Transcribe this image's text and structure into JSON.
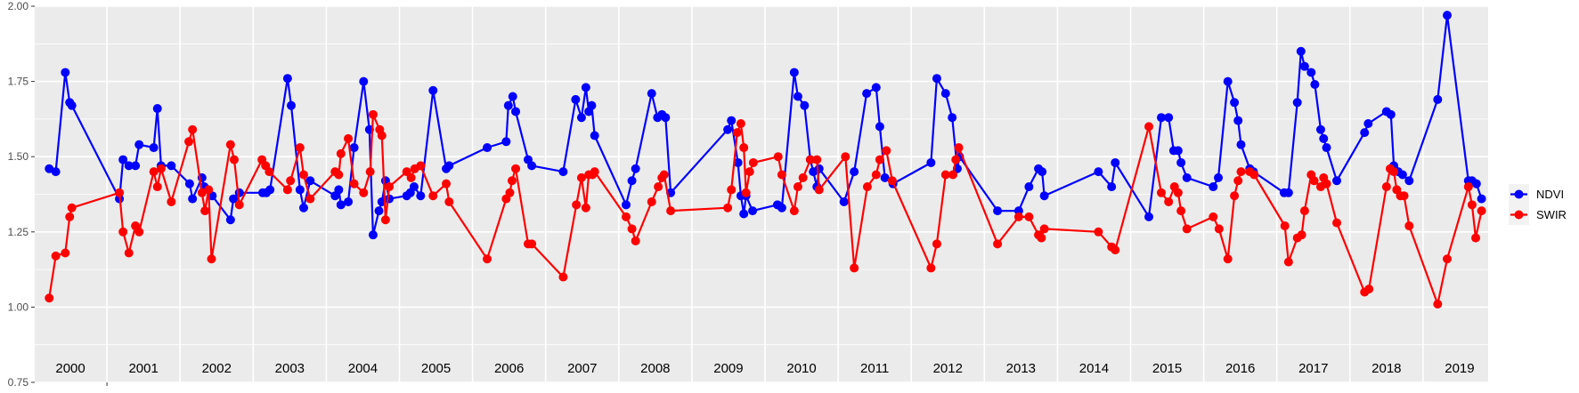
{
  "chart_data": {
    "type": "line",
    "title": "",
    "xlabel": "",
    "ylabel": "",
    "xlim": [
      2000.0,
      2019.89
    ],
    "ylim": [
      0.75,
      2.0
    ],
    "y_ticks": [
      "0.75",
      "1.00",
      "1.25",
      "1.50",
      "1.75",
      "2.00"
    ],
    "y_tick_values": [
      0.75,
      1.0,
      1.25,
      1.5,
      1.75,
      2.0
    ],
    "year_labels": [
      "2000",
      "2001",
      "2002",
      "2003",
      "2004",
      "2005",
      "2006",
      "2007",
      "2008",
      "2009",
      "2010",
      "2011",
      "2012",
      "2013",
      "2014",
      "2015",
      "2016",
      "2017",
      "2018",
      "2019"
    ],
    "grid": true,
    "legend_position": "right",
    "series": [
      {
        "name": "NDVI",
        "color": "#0000FF",
        "x": [
          2000.21,
          2000.3,
          2000.43,
          2000.49,
          2000.52,
          2001.17,
          2001.22,
          2001.3,
          2001.39,
          2001.44,
          2001.64,
          2001.69,
          2001.74,
          2001.88,
          2002.13,
          2002.17,
          2002.3,
          2002.33,
          2002.44,
          2002.69,
          2002.73,
          2002.81,
          2003.13,
          2003.18,
          2003.23,
          2003.47,
          2003.52,
          2003.64,
          2003.69,
          2003.78,
          2004.12,
          2004.17,
          2004.2,
          2004.3,
          2004.38,
          2004.51,
          2004.59,
          2004.64,
          2004.72,
          2004.76,
          2004.81,
          2004.86,
          2005.1,
          2005.15,
          2005.2,
          2005.29,
          2005.46,
          2005.64,
          2005.68,
          2006.2,
          2006.46,
          2006.49,
          2006.55,
          2006.59,
          2006.76,
          2006.81,
          2007.24,
          2007.41,
          2007.49,
          2007.55,
          2007.59,
          2007.63,
          2007.67,
          2008.1,
          2008.18,
          2008.23,
          2008.45,
          2008.53,
          2008.59,
          2008.64,
          2008.71,
          2009.49,
          2009.54,
          2009.63,
          2009.67,
          2009.71,
          2009.74,
          2009.83,
          2010.17,
          2010.23,
          2010.4,
          2010.45,
          2010.54,
          2010.62,
          2010.66,
          2010.71,
          2010.74,
          2011.08,
          2011.22,
          2011.39,
          2011.52,
          2011.57,
          2011.64,
          2011.75,
          2012.27,
          2012.35,
          2012.47,
          2012.56,
          2012.63,
          2012.66,
          2013.18,
          2013.47,
          2013.61,
          2013.74,
          2013.79,
          2013.82,
          2014.56,
          2014.74,
          2014.79,
          2015.25,
          2015.42,
          2015.52,
          2015.59,
          2015.65,
          2015.69,
          2015.77,
          2016.13,
          2016.2,
          2016.33,
          2016.42,
          2016.47,
          2016.51,
          2016.63,
          2016.68,
          2017.1,
          2017.16,
          2017.28,
          2017.33,
          2017.38,
          2017.47,
          2017.52,
          2017.6,
          2017.64,
          2017.68,
          2017.82,
          2018.2,
          2018.25,
          2018.5,
          2018.56,
          2018.6,
          2018.66,
          2018.72,
          2018.81,
          2019.2,
          2019.33,
          2019.62,
          2019.67,
          2019.73,
          2019.8
        ],
        "values": [
          1.46,
          1.45,
          1.78,
          1.68,
          1.67,
          1.36,
          1.49,
          1.47,
          1.47,
          1.54,
          1.53,
          1.66,
          1.47,
          1.47,
          1.41,
          1.36,
          1.43,
          1.4,
          1.37,
          1.29,
          1.36,
          1.38,
          1.38,
          1.38,
          1.39,
          1.76,
          1.67,
          1.39,
          1.33,
          1.42,
          1.37,
          1.39,
          1.34,
          1.35,
          1.53,
          1.75,
          1.59,
          1.24,
          1.32,
          1.35,
          1.42,
          1.36,
          1.37,
          1.38,
          1.4,
          1.37,
          1.72,
          1.46,
          1.47,
          1.53,
          1.55,
          1.67,
          1.7,
          1.65,
          1.49,
          1.47,
          1.45,
          1.69,
          1.63,
          1.73,
          1.65,
          1.67,
          1.57,
          1.34,
          1.42,
          1.46,
          1.71,
          1.63,
          1.64,
          1.63,
          1.38,
          1.59,
          1.62,
          1.48,
          1.37,
          1.31,
          1.37,
          1.32,
          1.34,
          1.33,
          1.78,
          1.7,
          1.67,
          1.49,
          1.45,
          1.4,
          1.46,
          1.35,
          1.45,
          1.71,
          1.73,
          1.6,
          1.43,
          1.41,
          1.48,
          1.76,
          1.71,
          1.63,
          1.46,
          1.5,
          1.32,
          1.32,
          1.4,
          1.46,
          1.45,
          1.37,
          1.45,
          1.4,
          1.48,
          1.3,
          1.63,
          1.63,
          1.52,
          1.52,
          1.48,
          1.43,
          1.4,
          1.43,
          1.75,
          1.68,
          1.62,
          1.54,
          1.46,
          1.45,
          1.38,
          1.38,
          1.68,
          1.85,
          1.8,
          1.78,
          1.74,
          1.59,
          1.56,
          1.53,
          1.42,
          1.58,
          1.61,
          1.65,
          1.64,
          1.47,
          1.45,
          1.44,
          1.42,
          1.69,
          1.97,
          1.42,
          1.42,
          1.41,
          1.36
        ]
      },
      {
        "name": "SWIR",
        "color": "#FF0000",
        "x": [
          2000.21,
          2000.3,
          2000.43,
          2000.49,
          2000.52,
          2001.17,
          2001.22,
          2001.3,
          2001.39,
          2001.44,
          2001.64,
          2001.69,
          2001.74,
          2001.88,
          2002.12,
          2002.17,
          2002.3,
          2002.34,
          2002.39,
          2002.43,
          2002.69,
          2002.74,
          2002.81,
          2003.12,
          2003.17,
          2003.22,
          2003.47,
          2003.51,
          2003.64,
          2003.69,
          2003.78,
          2004.12,
          2004.17,
          2004.2,
          2004.3,
          2004.38,
          2004.51,
          2004.6,
          2004.64,
          2004.73,
          2004.76,
          2004.81,
          2004.86,
          2005.1,
          2005.16,
          2005.21,
          2005.29,
          2005.46,
          2005.64,
          2005.68,
          2006.2,
          2006.46,
          2006.51,
          2006.54,
          2006.59,
          2006.76,
          2006.81,
          2007.24,
          2007.42,
          2007.49,
          2007.55,
          2007.59,
          2007.64,
          2007.67,
          2008.1,
          2008.18,
          2008.23,
          2008.45,
          2008.54,
          2008.59,
          2008.62,
          2008.71,
          2009.49,
          2009.54,
          2009.62,
          2009.67,
          2009.71,
          2009.74,
          2009.79,
          2009.84,
          2010.18,
          2010.23,
          2010.4,
          2010.45,
          2010.52,
          2010.62,
          2010.71,
          2010.74,
          2011.1,
          2011.22,
          2011.4,
          2011.52,
          2011.57,
          2011.66,
          2011.74,
          2012.27,
          2012.35,
          2012.47,
          2012.57,
          2012.61,
          2012.65,
          2013.18,
          2013.47,
          2013.61,
          2013.74,
          2013.78,
          2013.82,
          2014.56,
          2014.74,
          2014.79,
          2015.25,
          2015.42,
          2015.52,
          2015.6,
          2015.65,
          2015.69,
          2015.77,
          2016.13,
          2016.21,
          2016.33,
          2016.42,
          2016.47,
          2016.51,
          2016.63,
          2016.69,
          2017.11,
          2017.16,
          2017.28,
          2017.34,
          2017.38,
          2017.47,
          2017.51,
          2017.6,
          2017.64,
          2017.68,
          2017.82,
          2018.2,
          2018.26,
          2018.5,
          2018.55,
          2018.6,
          2018.64,
          2018.69,
          2018.74,
          2018.81,
          2019.2,
          2019.33,
          2019.62,
          2019.67,
          2019.72,
          2019.8
        ],
        "values": [
          1.03,
          1.17,
          1.18,
          1.3,
          1.33,
          1.38,
          1.25,
          1.18,
          1.27,
          1.25,
          1.45,
          1.4,
          1.46,
          1.35,
          1.55,
          1.59,
          1.38,
          1.32,
          1.39,
          1.16,
          1.54,
          1.49,
          1.34,
          1.49,
          1.47,
          1.45,
          1.39,
          1.42,
          1.53,
          1.44,
          1.36,
          1.45,
          1.44,
          1.51,
          1.56,
          1.41,
          1.38,
          1.45,
          1.64,
          1.59,
          1.57,
          1.29,
          1.4,
          1.45,
          1.43,
          1.46,
          1.47,
          1.37,
          1.41,
          1.35,
          1.16,
          1.36,
          1.38,
          1.42,
          1.46,
          1.21,
          1.21,
          1.1,
          1.34,
          1.43,
          1.33,
          1.44,
          1.44,
          1.45,
          1.3,
          1.26,
          1.22,
          1.35,
          1.4,
          1.43,
          1.44,
          1.32,
          1.33,
          1.39,
          1.58,
          1.61,
          1.53,
          1.38,
          1.45,
          1.48,
          1.5,
          1.44,
          1.32,
          1.4,
          1.43,
          1.49,
          1.49,
          1.39,
          1.5,
          1.13,
          1.4,
          1.44,
          1.49,
          1.52,
          1.42,
          1.13,
          1.21,
          1.44,
          1.44,
          1.49,
          1.53,
          1.21,
          1.3,
          1.3,
          1.24,
          1.23,
          1.26,
          1.25,
          1.2,
          1.19,
          1.6,
          1.38,
          1.35,
          1.4,
          1.38,
          1.32,
          1.26,
          1.3,
          1.26,
          1.16,
          1.37,
          1.42,
          1.45,
          1.45,
          1.44,
          1.27,
          1.15,
          1.23,
          1.24,
          1.32,
          1.44,
          1.42,
          1.4,
          1.43,
          1.41,
          1.28,
          1.05,
          1.06,
          1.4,
          1.46,
          1.45,
          1.39,
          1.37,
          1.37,
          1.27,
          1.01,
          1.16,
          1.4,
          1.34,
          1.23,
          1.32
        ]
      }
    ]
  }
}
